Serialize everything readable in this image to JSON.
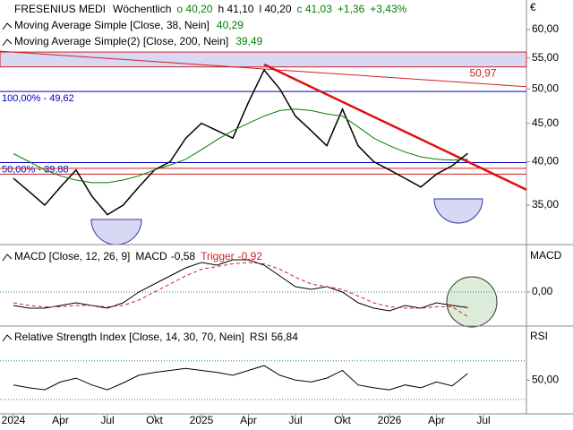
{
  "chart_data": [
    {
      "type": "line",
      "title": "FRESENIUS MEDI",
      "subtitle": "Wöchentlich",
      "quote": [
        {
          "text": "o 40,20",
          "color": "#008000"
        },
        {
          "text": "h 41,10",
          "color": "#000000"
        },
        {
          "text": "l 40,20",
          "color": "#000000"
        },
        {
          "text": "c 41,03",
          "color": "#008000"
        },
        {
          "text": "+1,36",
          "color": "#008000"
        },
        {
          "text": "+3,43%",
          "color": "#008000"
        }
      ],
      "currency": "€",
      "log_scale": true,
      "x": [
        "2024-01",
        "2024-02",
        "2024-03",
        "2024-04",
        "2024-05",
        "2024-06",
        "2024-07",
        "2024-08",
        "2024-09",
        "2024-10",
        "2024-11",
        "2024-12",
        "2025-01",
        "2025-02",
        "2025-03",
        "2025-04",
        "2025-05",
        "2025-06",
        "2025-07",
        "2025-08",
        "2025-09",
        "2025-10",
        "2025-11",
        "2025-12",
        "2026-01",
        "2026-02",
        "2026-03",
        "2026-04",
        "2026-05",
        "2026-06"
      ],
      "series": [
        {
          "name": "FRESENIUS MEDI",
          "color": "#000000",
          "values": [
            38,
            36.5,
            35,
            37,
            39,
            36,
            34,
            35,
            37,
            39,
            40,
            43,
            45,
            44,
            43,
            48,
            53,
            50,
            46,
            44,
            42,
            47,
            42,
            40,
            39,
            38,
            37,
            38.5,
            39.5,
            41.03
          ]
        },
        {
          "name": "Moving Average Simple [Close, 38, Nein]",
          "last_label": "40,29",
          "color": "#008000",
          "values": [
            41,
            40,
            39,
            38.3,
            37.8,
            37.5,
            37.5,
            37.8,
            38.3,
            39,
            39.6,
            40.3,
            41.5,
            42.8,
            44,
            45,
            46,
            46.8,
            47,
            46.8,
            46.3,
            46,
            44.5,
            43,
            42,
            41.2,
            40.6,
            40.3,
            40.2,
            40.29
          ]
        },
        {
          "name": "Moving Average Simple(2) [Close, 200, Nein]",
          "last_label": "39,49",
          "color": "#000000"
        }
      ],
      "ylim": [
        31.1,
        65.7
      ],
      "yticks": [
        {
          "value": 35,
          "label": "35,00"
        },
        {
          "value": 40,
          "label": "40,00"
        },
        {
          "value": 45,
          "label": "45,00"
        },
        {
          "value": 50,
          "label": "50,00"
        },
        {
          "value": 55,
          "label": "55,00"
        },
        {
          "value": 60,
          "label": "60,00"
        }
      ],
      "xticks": [
        {
          "value": "2024-01",
          "label": "2024"
        },
        {
          "value": "2024-04",
          "label": "Apr"
        },
        {
          "value": "2024-07",
          "label": "Jul"
        },
        {
          "value": "2024-10",
          "label": "Okt"
        },
        {
          "value": "2025-01",
          "label": "2025"
        },
        {
          "value": "2025-04",
          "label": "Apr"
        },
        {
          "value": "2025-07",
          "label": "Jul"
        },
        {
          "value": "2025-10",
          "label": "Okt"
        },
        {
          "value": "2026-01",
          "label": "2026"
        },
        {
          "value": "2026-04",
          "label": "Apr"
        },
        {
          "value": "2026-07",
          "label": "Jul"
        }
      ],
      "band": {
        "range": [
          53.5,
          56
        ],
        "color": "#d8d8f4"
      },
      "levels": [
        {
          "value": 49.62,
          "label": "100,00% - 49,62",
          "color": "#0000c0"
        },
        {
          "value": 39.88,
          "label": "50,00% - 39,88",
          "color": "#0000c0"
        },
        {
          "value": 39.2,
          "color": "#cc2222"
        },
        {
          "value": 38.5,
          "color": "#cc2222"
        }
      ],
      "trendlines": [
        {
          "x": [
            "2024-01",
            "2026-06"
          ],
          "y": [
            56,
            50.97
          ],
          "label": "50,97",
          "color": "#cc2222",
          "width": 1
        },
        {
          "x": [
            "2025-05",
            "2026-06"
          ],
          "y": [
            53.9,
            40
          ],
          "color": "#dd1111",
          "width": 2.5
        }
      ]
    },
    {
      "type": "line",
      "title": "MACD [Close, 12, 26, 9]",
      "panel_label": "MACD",
      "x": [
        "2024-01",
        "2024-02",
        "2024-03",
        "2024-04",
        "2024-05",
        "2024-06",
        "2024-07",
        "2024-08",
        "2024-09",
        "2024-10",
        "2024-11",
        "2024-12",
        "2025-01",
        "2025-02",
        "2025-03",
        "2025-04",
        "2025-05",
        "2025-06",
        "2025-07",
        "2025-08",
        "2025-09",
        "2025-10",
        "2025-11",
        "2025-12",
        "2026-01",
        "2026-02",
        "2026-03",
        "2026-04",
        "2026-05",
        "2026-06"
      ],
      "series": [
        {
          "name": "MACD",
          "last_label": "-0,58",
          "color": "#000000",
          "dash": false,
          "values": [
            -0.5,
            -0.6,
            -0.6,
            -0.5,
            -0.4,
            -0.5,
            -0.6,
            -0.4,
            0.0,
            0.3,
            0.6,
            0.9,
            1.1,
            1.0,
            1.2,
            1.2,
            1.0,
            0.6,
            0.2,
            0.1,
            0.2,
            0.0,
            -0.4,
            -0.6,
            -0.7,
            -0.5,
            -0.6,
            -0.4,
            -0.5,
            -0.58
          ]
        },
        {
          "name": "Trigger",
          "last_label": "-0,92",
          "color": "#cc2222",
          "dash": true,
          "values": [
            -0.4,
            -0.5,
            -0.55,
            -0.55,
            -0.5,
            -0.5,
            -0.55,
            -0.5,
            -0.3,
            0.0,
            0.3,
            0.6,
            0.85,
            0.95,
            1.05,
            1.1,
            1.05,
            0.85,
            0.55,
            0.3,
            0.2,
            0.1,
            -0.15,
            -0.4,
            -0.55,
            -0.6,
            -0.6,
            -0.55,
            -0.55,
            -0.92
          ]
        }
      ],
      "ylim": [
        -1.2,
        1.7
      ],
      "yticks": [
        {
          "value": 0,
          "label": "0,00"
        }
      ],
      "hlines": [
        0
      ]
    },
    {
      "type": "line",
      "title": "Relative Strength Index [Close, 14, 30, 70, Nein]",
      "panel_label": "RSI",
      "x": [
        "2024-01",
        "2024-02",
        "2024-03",
        "2024-04",
        "2024-05",
        "2024-06",
        "2024-07",
        "2024-08",
        "2024-09",
        "2024-10",
        "2024-11",
        "2024-12",
        "2025-01",
        "2025-02",
        "2025-03",
        "2025-04",
        "2025-05",
        "2025-06",
        "2025-07",
        "2025-08",
        "2025-09",
        "2025-10",
        "2025-11",
        "2025-12",
        "2026-01",
        "2026-02",
        "2026-03",
        "2026-04",
        "2026-05",
        "2026-06"
      ],
      "series": [
        {
          "name": "RSI",
          "last_label": "56,84",
          "color": "#000000",
          "dash": false,
          "values": [
            45,
            42,
            40,
            48,
            52,
            45,
            40,
            47,
            55,
            58,
            60,
            62,
            60,
            58,
            55,
            60,
            65,
            55,
            50,
            48,
            52,
            60,
            45,
            42,
            40,
            45,
            42,
            48,
            44,
            56.84
          ]
        }
      ],
      "ylim": [
        15,
        105
      ],
      "yticks": [
        {
          "value": 50,
          "label": "50,00"
        }
      ],
      "hlines": [
        30,
        70
      ]
    }
  ]
}
